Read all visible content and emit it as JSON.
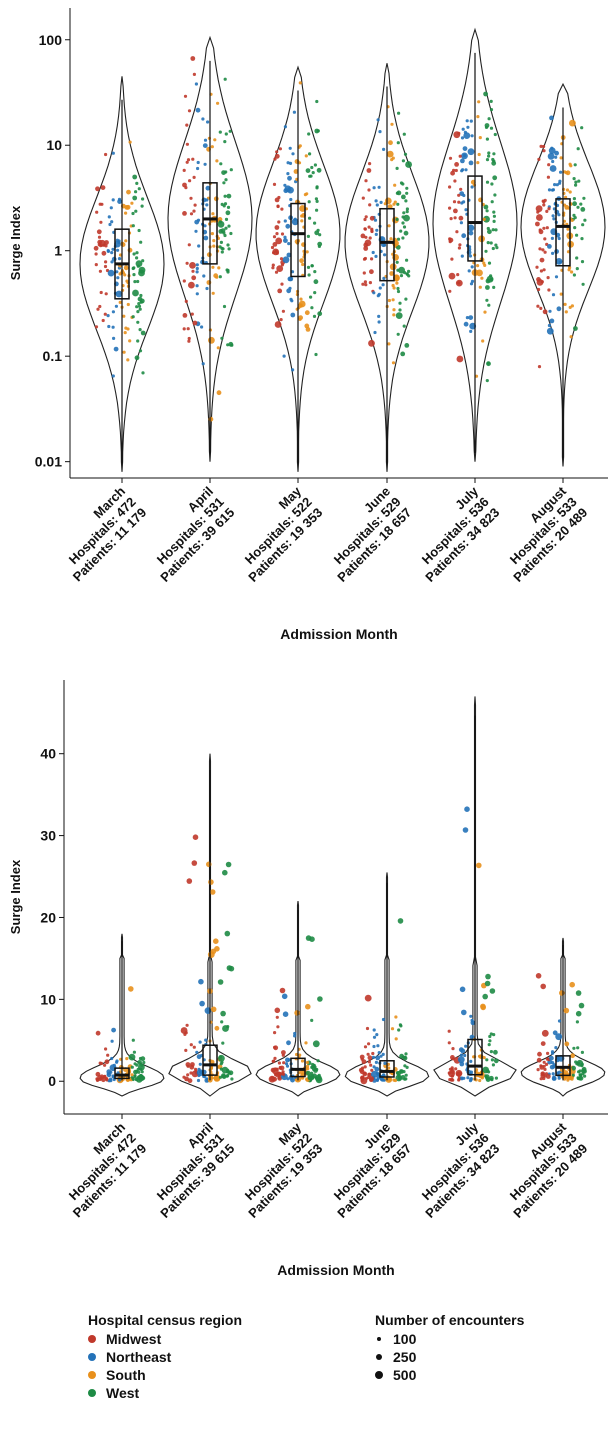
{
  "chart_data": [
    {
      "type": "violin",
      "yscale": "log",
      "ylabel": "Surge Index",
      "xlabel": "Admission Month",
      "ylim": [
        0.007,
        200
      ],
      "yticks": [
        0.01,
        0.1,
        1,
        10,
        100
      ],
      "ytick_labels": [
        "0.01",
        "0.1",
        "1",
        "10",
        "100"
      ],
      "categories": [
        {
          "month": "March",
          "hospitals": "Hospitals: 472",
          "patients": "Patients: 11 179",
          "min": 0.008,
          "q1": 0.35,
          "median": 0.75,
          "q3": 1.6,
          "max": 45
        },
        {
          "month": "April",
          "hospitals": "Hospitals: 531",
          "patients": "Patients: 39 615",
          "min": 0.01,
          "q1": 0.75,
          "median": 2.0,
          "q3": 4.4,
          "max": 105
        },
        {
          "month": "May",
          "hospitals": "Hospitals: 522",
          "patients": "Patients: 19 353",
          "min": 0.008,
          "q1": 0.57,
          "median": 1.45,
          "q3": 2.8,
          "max": 55
        },
        {
          "month": "June",
          "hospitals": "Hospitals: 529",
          "patients": "Patients: 18 657",
          "min": 0.008,
          "q1": 0.52,
          "median": 1.2,
          "q3": 2.5,
          "max": 60
        },
        {
          "month": "July",
          "hospitals": "Hospitals: 536",
          "patients": "Patients: 34 823",
          "min": 0.01,
          "q1": 0.8,
          "median": 1.85,
          "q3": 5.1,
          "max": 125
        },
        {
          "month": "August",
          "hospitals": "Hospitals: 533",
          "patients": "Patients: 20 489",
          "min": 0.009,
          "q1": 0.72,
          "median": 1.7,
          "q3": 3.1,
          "max": 38
        }
      ]
    },
    {
      "type": "violin",
      "yscale": "linear",
      "ylabel": "Surge Index",
      "xlabel": "Admission Month",
      "ylim": [
        -4,
        49
      ],
      "yticks": [
        0,
        10,
        20,
        30,
        40
      ],
      "ytick_labels": [
        "0",
        "10",
        "20",
        "30",
        "40"
      ],
      "categories": [
        {
          "month": "March",
          "hospitals": "Hospitals: 472",
          "patients": "Patients: 11 179",
          "q1": 0.35,
          "median": 0.75,
          "q3": 1.6,
          "max": 18
        },
        {
          "month": "April",
          "hospitals": "Hospitals: 531",
          "patients": "Patients: 39 615",
          "q1": 0.75,
          "median": 2.0,
          "q3": 4.4,
          "max": 40
        },
        {
          "month": "May",
          "hospitals": "Hospitals: 522",
          "patients": "Patients: 19 353",
          "q1": 0.57,
          "median": 1.45,
          "q3": 2.8,
          "max": 22
        },
        {
          "month": "June",
          "hospitals": "Hospitals: 529",
          "patients": "Patients: 18 657",
          "q1": 0.52,
          "median": 1.2,
          "q3": 2.5,
          "max": 25.5
        },
        {
          "month": "July",
          "hospitals": "Hospitals: 536",
          "patients": "Patients: 34 823",
          "q1": 0.8,
          "median": 1.85,
          "q3": 5.1,
          "max": 47
        },
        {
          "month": "August",
          "hospitals": "Hospitals: 533",
          "patients": "Patients: 20 489",
          "q1": 0.72,
          "median": 1.7,
          "q3": 3.1,
          "max": 17.5
        }
      ]
    }
  ],
  "legend": {
    "region_title": "Hospital census region",
    "regions": [
      {
        "name": "Midwest",
        "color": "#c0392b"
      },
      {
        "name": "Northeast",
        "color": "#2472b8"
      },
      {
        "name": "South",
        "color": "#e8901c"
      },
      {
        "name": "West",
        "color": "#1e8b45"
      }
    ],
    "size_title": "Number of encounters",
    "sizes": [
      {
        "label": "100"
      },
      {
        "label": "250"
      },
      {
        "label": "500"
      }
    ]
  }
}
